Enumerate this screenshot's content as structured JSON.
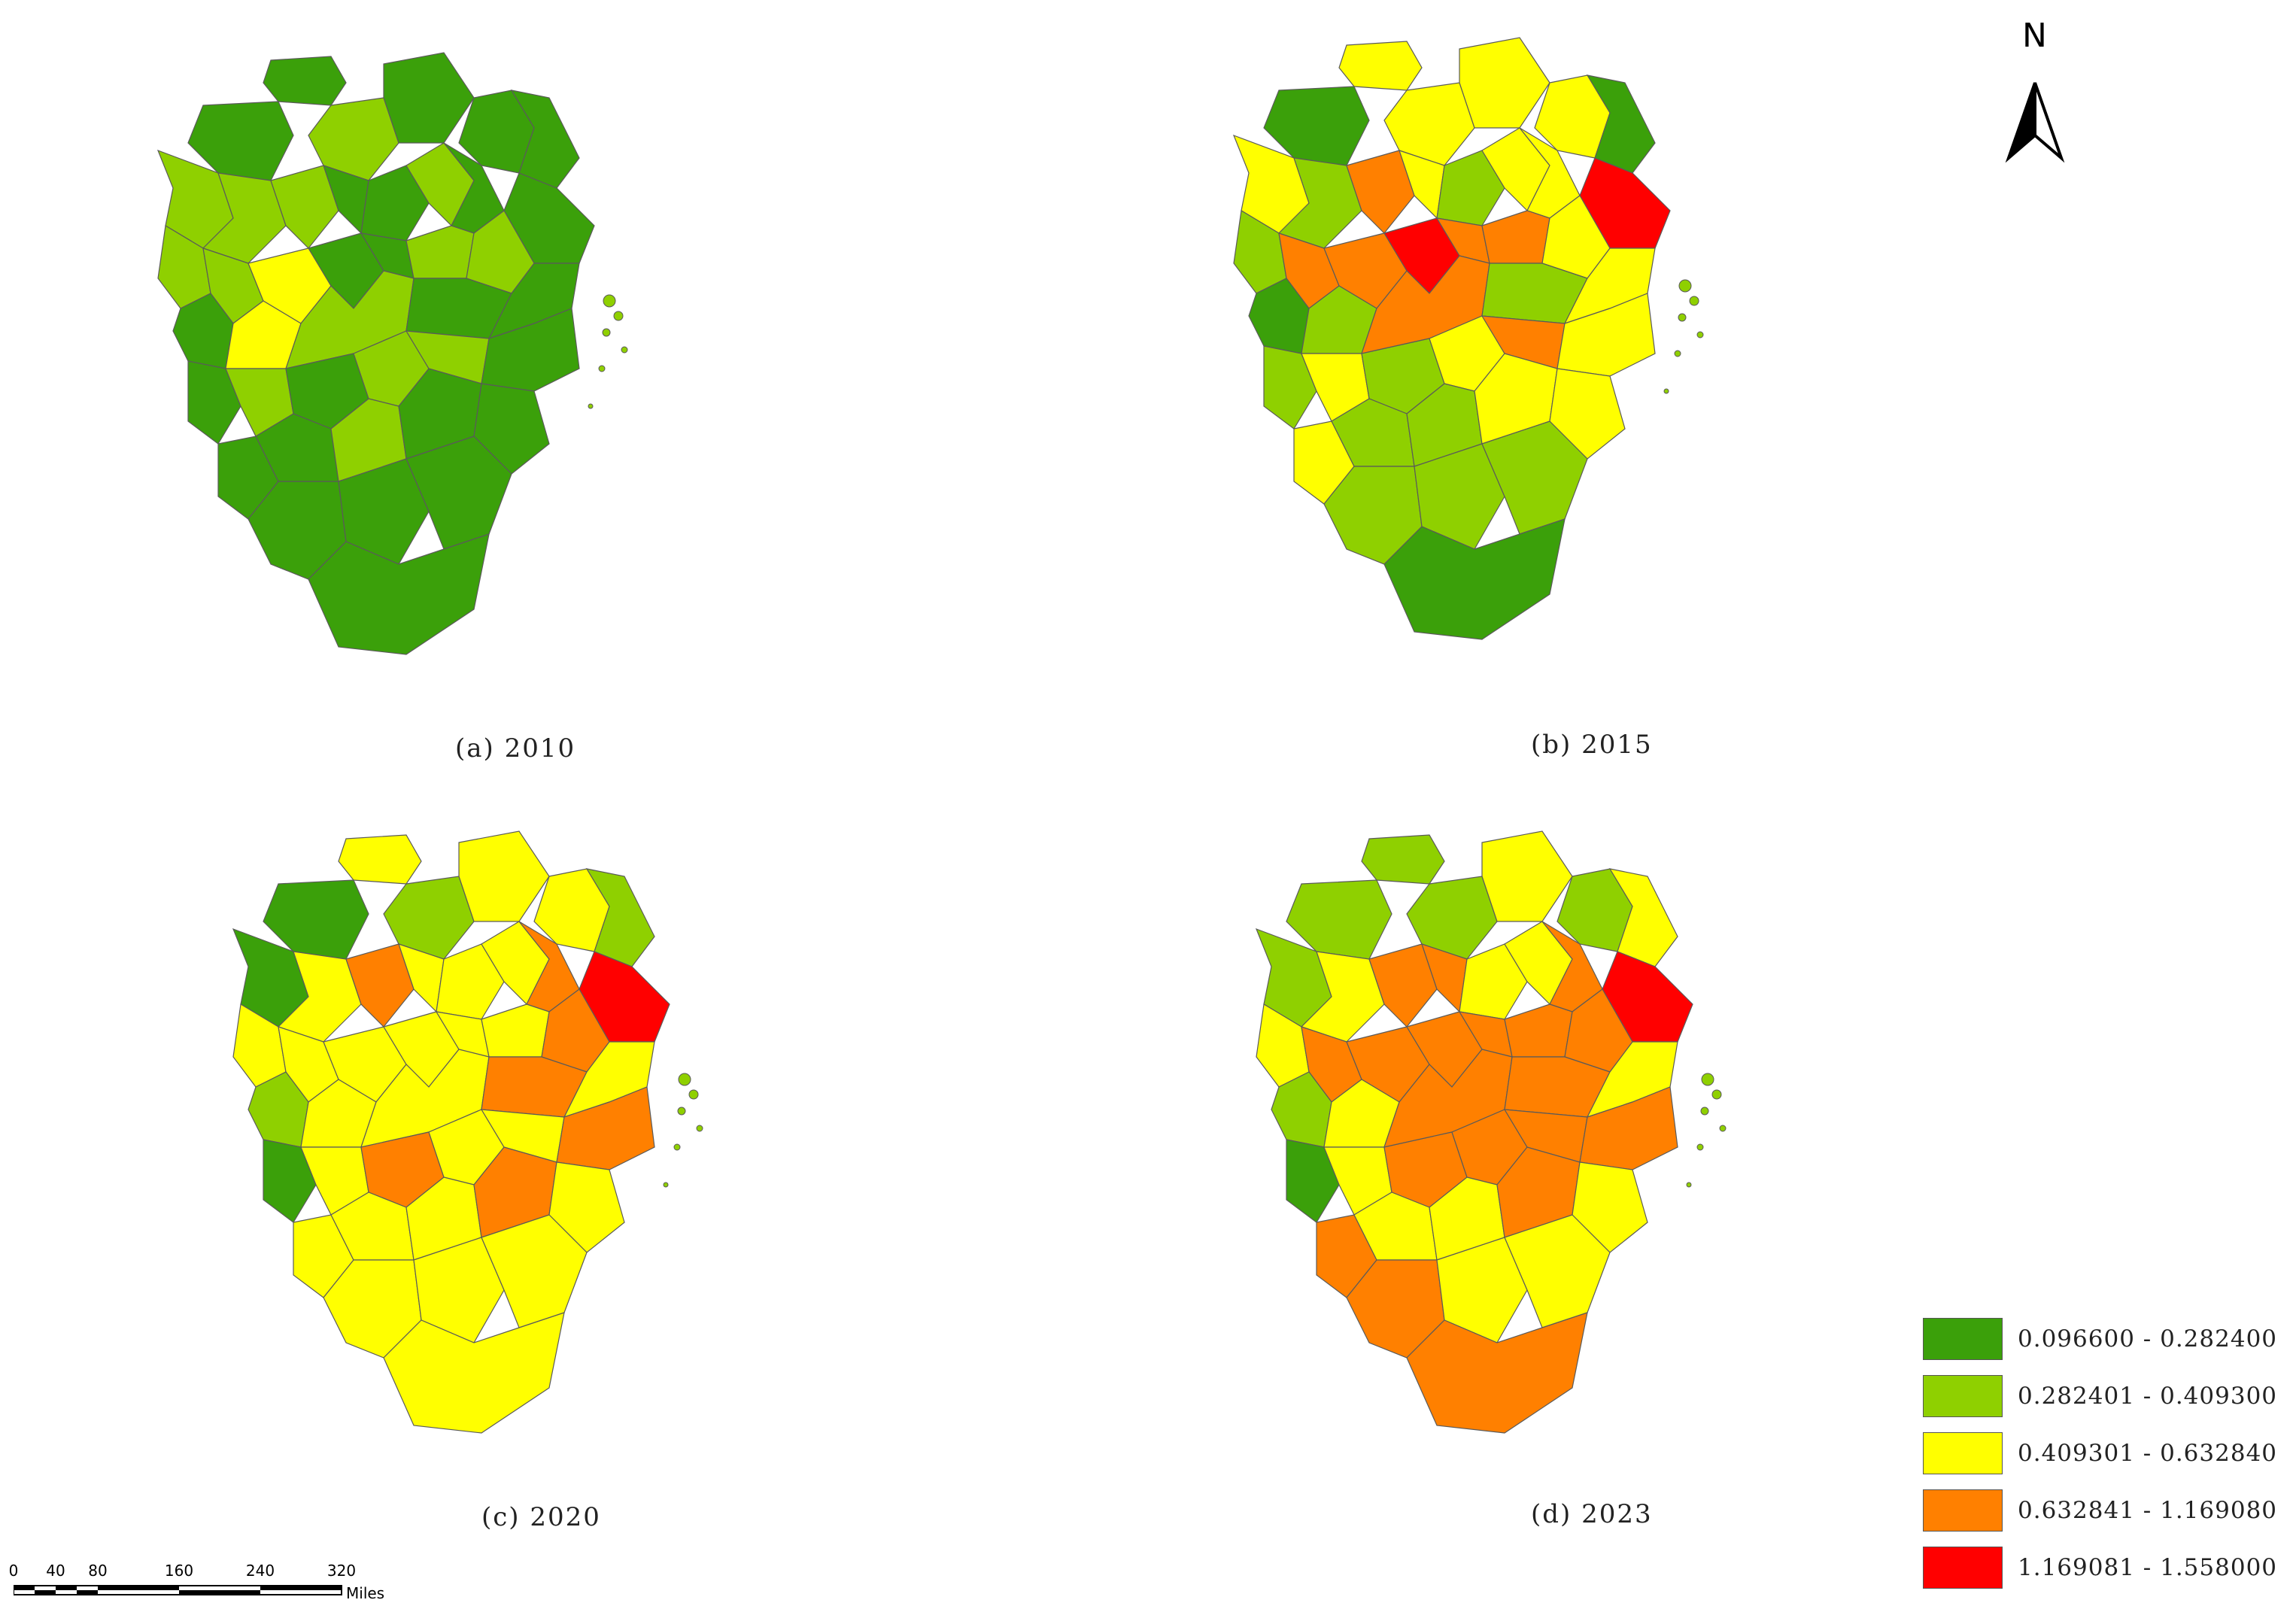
{
  "panels": [
    {
      "caption": "(a)  2010",
      "region_classes": [
        0,
        0,
        1,
        0,
        0,
        0,
        1,
        1,
        1,
        0,
        0,
        1,
        0,
        0,
        1,
        1,
        2,
        0,
        0,
        1,
        1,
        0,
        2,
        1,
        0,
        0,
        0,
        1,
        0,
        1,
        1,
        0,
        0,
        0,
        1,
        0,
        0,
        0,
        0,
        0,
        0
      ]
    },
    {
      "caption": "(b)  2015",
      "region_classes": [
        2,
        0,
        2,
        2,
        2,
        0,
        2,
        1,
        3,
        2,
        1,
        2,
        2,
        4,
        1,
        3,
        3,
        4,
        3,
        3,
        2,
        0,
        1,
        3,
        1,
        2,
        1,
        2,
        1,
        2,
        3,
        2,
        2,
        1,
        1,
        2,
        2,
        1,
        1,
        1,
        0
      ]
    },
    {
      "caption": "(c)  2020",
      "region_classes": [
        2,
        0,
        1,
        2,
        2,
        1,
        0,
        2,
        3,
        2,
        2,
        2,
        3,
        4,
        2,
        2,
        2,
        2,
        2,
        2,
        3,
        1,
        2,
        2,
        3,
        2,
        0,
        2,
        3,
        2,
        2,
        3,
        2,
        2,
        2,
        3,
        2,
        2,
        2,
        2,
        2
      ]
    },
    {
      "caption": "(d)  2023",
      "region_classes": [
        1,
        1,
        1,
        2,
        1,
        2,
        1,
        2,
        3,
        3,
        2,
        2,
        3,
        4,
        2,
        3,
        3,
        3,
        3,
        3,
        3,
        1,
        2,
        3,
        3,
        2,
        0,
        2,
        3,
        3,
        3,
        3,
        3,
        2,
        2,
        3,
        2,
        3,
        2,
        2,
        3
      ]
    }
  ],
  "legend": {
    "classes": [
      {
        "label": "0.096600  -  0.282400",
        "color": "#3ba00a"
      },
      {
        "label": "0.282401  -  0.409300",
        "color": "#8fd000"
      },
      {
        "label": "0.409301  -  0.632840",
        "color": "#ffff00"
      },
      {
        "label": "0.632841  -  1.169080",
        "color": "#ff8000"
      },
      {
        "label": "1.169081  -  1.558000",
        "color": "#ff0000"
      }
    ]
  },
  "north_arrow": {
    "label": "N"
  },
  "scale_bar": {
    "ticks": [
      "0",
      "40",
      "80",
      "160",
      "240",
      "320"
    ],
    "unit": "Miles"
  }
}
